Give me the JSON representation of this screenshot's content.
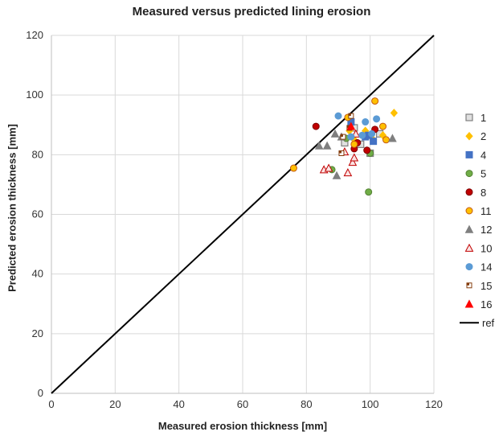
{
  "chart_data": {
    "type": "scatter",
    "title": "Measured versus predicted lining erosion",
    "xlabel": "Measured erosion thickness [mm]",
    "ylabel": "Predicted erosion thickness [mm]",
    "xlim": [
      0,
      120
    ],
    "ylim": [
      0,
      120
    ],
    "x_ticks": [
      "0",
      "20",
      "40",
      "60",
      "80",
      "100",
      "120"
    ],
    "y_ticks": [
      "0",
      "20",
      "40",
      "60",
      "80",
      "100",
      "120"
    ],
    "grid": true,
    "legend_position": "right",
    "series": [
      {
        "name": "1",
        "marker": "square-outline",
        "color": "#7f7f7f",
        "fill": "#e0e0e0",
        "points": [
          [
            92,
            84
          ],
          [
            95,
            89
          ],
          [
            100,
            80.5
          ],
          [
            103,
            87
          ],
          [
            97,
            83.5
          ]
        ]
      },
      {
        "name": "2",
        "marker": "diamond",
        "color": "#ffc000",
        "fill": "#ffc000",
        "points": [
          [
            107.5,
            94
          ],
          [
            98.5,
            88
          ],
          [
            95,
            85
          ],
          [
            104,
            86.5
          ],
          [
            101,
            85
          ],
          [
            93.5,
            88
          ]
        ]
      },
      {
        "name": "4",
        "marker": "square",
        "color": "#4472c4",
        "fill": "#4472c4",
        "points": [
          [
            94,
            91
          ],
          [
            98.5,
            86
          ],
          [
            99.5,
            86.5
          ],
          [
            101,
            84.5
          ]
        ]
      },
      {
        "name": "5",
        "marker": "circle",
        "color": "#548235",
        "fill": "#70ad47",
        "points": [
          [
            88,
            75
          ],
          [
            99.5,
            67.5
          ],
          [
            100,
            80.5
          ],
          [
            92.5,
            85.5
          ]
        ]
      },
      {
        "name": "8",
        "marker": "circle",
        "color": "#7f0000",
        "fill": "#c00000",
        "points": [
          [
            83,
            89.5
          ],
          [
            96,
            84
          ],
          [
            101.5,
            88.5
          ],
          [
            99,
            81.5
          ],
          [
            95,
            82
          ]
        ]
      },
      {
        "name": "11",
        "marker": "circle",
        "color": "#c55a11",
        "fill": "#ffc000",
        "points": [
          [
            76,
            75.5
          ],
          [
            93,
            92.5
          ],
          [
            101.5,
            98
          ],
          [
            104,
            89.5
          ],
          [
            105,
            85
          ],
          [
            95,
            83.5
          ]
        ]
      },
      {
        "name": "12",
        "marker": "triangle",
        "color": "#7f7f7f",
        "fill": "#7f7f7f",
        "points": [
          [
            84,
            83
          ],
          [
            86.5,
            83
          ],
          [
            89,
            87
          ],
          [
            89.5,
            73
          ],
          [
            91,
            86
          ],
          [
            107,
            85.5
          ]
        ]
      },
      {
        "name": "10",
        "marker": "triangle-outline",
        "color": "#c00000",
        "fill": "#fbe4e4",
        "points": [
          [
            85.5,
            75
          ],
          [
            87,
            75.5
          ],
          [
            92,
            81
          ],
          [
            93,
            74
          ],
          [
            94.5,
            77.5
          ],
          [
            95,
            79
          ],
          [
            95.5,
            87
          ]
        ]
      },
      {
        "name": "14",
        "marker": "circle",
        "color": "#5b9bd5",
        "fill": "#5b9bd5",
        "points": [
          [
            90,
            93
          ],
          [
            98.5,
            91
          ],
          [
            102,
            92
          ],
          [
            100.5,
            87
          ],
          [
            97.5,
            86.5
          ],
          [
            94,
            86
          ]
        ]
      },
      {
        "name": "15",
        "marker": "square-dot",
        "color": "#843c0c",
        "fill": "#ffffff",
        "points": [
          [
            91,
            80.5
          ],
          [
            91.5,
            86
          ],
          [
            93.5,
            89
          ],
          [
            94,
            93
          ]
        ]
      },
      {
        "name": "16",
        "marker": "triangle",
        "color": "#ff0000",
        "fill": "#ff0000",
        "points": [
          [
            94,
            89.5
          ]
        ]
      },
      {
        "name": "ref",
        "marker": "line",
        "color": "#000000",
        "points": [
          [
            0,
            0
          ],
          [
            120,
            120
          ]
        ]
      }
    ]
  }
}
